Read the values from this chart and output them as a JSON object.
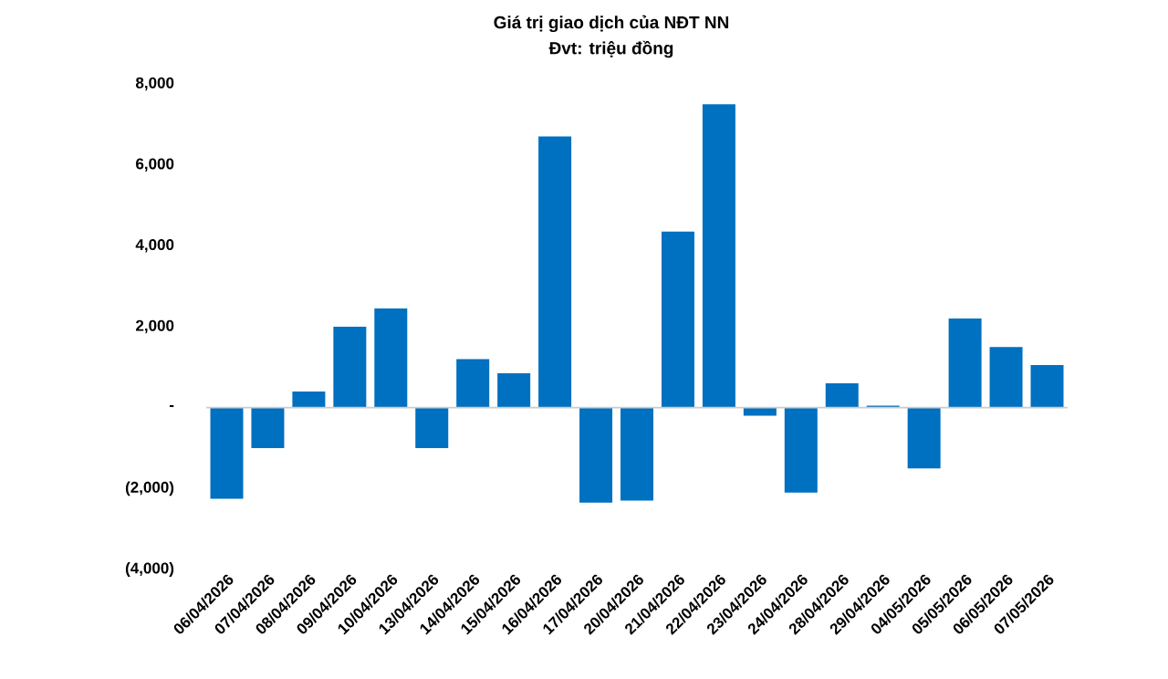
{
  "chart_data": {
    "type": "bar",
    "title": "Giá trị giao dịch của NĐT NN",
    "subtitle": "Đvt: triệu đồng",
    "categories": [
      "06/04/2026",
      "07/04/2026",
      "08/04/2026",
      "09/04/2026",
      "10/04/2026",
      "13/04/2026",
      "14/04/2026",
      "15/04/2026",
      "16/04/2026",
      "17/04/2026",
      "20/04/2026",
      "21/04/2026",
      "22/04/2026",
      "23/04/2026",
      "24/04/2026",
      "28/04/2026",
      "29/04/2026",
      "04/05/2026",
      "05/05/2026",
      "06/05/2026",
      "07/05/2026"
    ],
    "values": [
      -2250,
      -1000,
      400,
      2000,
      2450,
      -1000,
      1200,
      850,
      6700,
      -2350,
      -2300,
      4350,
      7500,
      -200,
      -2100,
      600,
      50,
      -1500,
      2200,
      1500,
      1050
    ],
    "color": "#0070c0",
    "ylim": [
      -4000,
      8000
    ],
    "yticks": [
      {
        "value": -4000,
        "label": "(4,000)"
      },
      {
        "value": -2000,
        "label": "(2,000)"
      },
      {
        "value": 0,
        "label": "-"
      },
      {
        "value": 2000,
        "label": "2,000"
      },
      {
        "value": 4000,
        "label": "4,000"
      },
      {
        "value": 6000,
        "label": "6,000"
      },
      {
        "value": 8000,
        "label": "8,000"
      }
    ]
  }
}
